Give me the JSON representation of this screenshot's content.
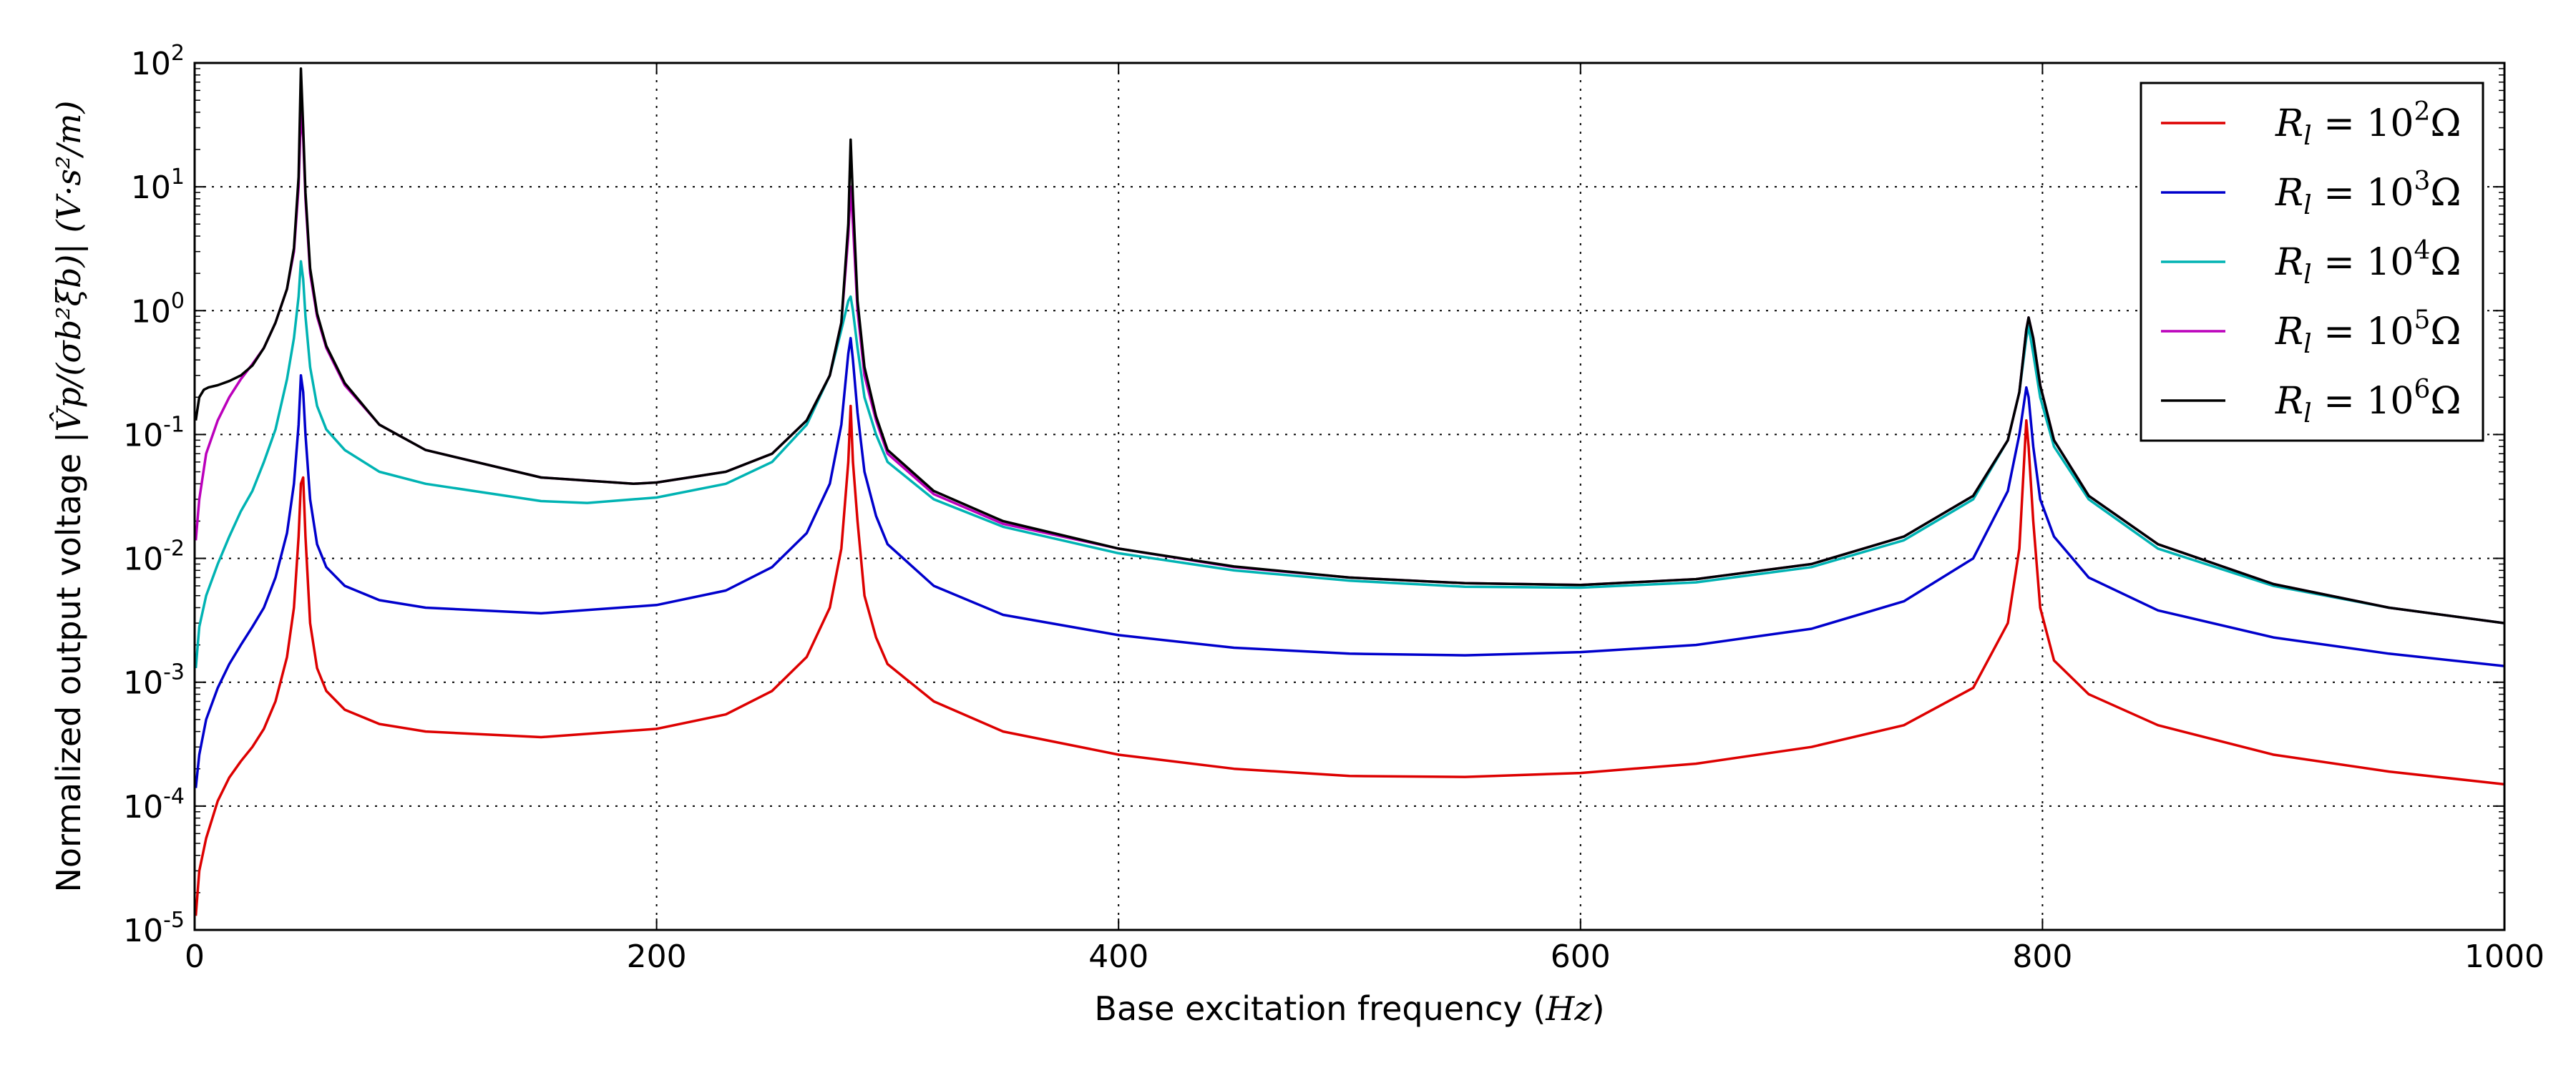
{
  "chart_data": {
    "type": "line",
    "title": "",
    "xlabel": "Base excitation frequency (Hz)",
    "xlabel_prefix": "Base excitation frequency (",
    "xlabel_unit": "Hz",
    "xlabel_suffix": ")",
    "ylabel": "Normalized output voltage |V̂p/(σb²ξb)| (V·s²/m)",
    "ylabel_plain": "Normalized output voltage ",
    "ylabel_math": "|V̂p/(σb²ξb)|  (V·s²/m)",
    "xlim": [
      0,
      1000
    ],
    "ylim": [
      1e-05,
      100
    ],
    "yscale": "log",
    "grid": true,
    "legend_position": "top-right",
    "x_ticks": [
      "0",
      "200",
      "400",
      "600",
      "800",
      "1000"
    ],
    "y_ticks": [
      {
        "base": "10",
        "exp": "-5"
      },
      {
        "base": "10",
        "exp": "-4"
      },
      {
        "base": "10",
        "exp": "-3"
      },
      {
        "base": "10",
        "exp": "-2"
      },
      {
        "base": "10",
        "exp": "-1"
      },
      {
        "base": "10",
        "exp": "0"
      },
      {
        "base": "10",
        "exp": "1"
      },
      {
        "base": "10",
        "exp": "2"
      }
    ],
    "series": [
      {
        "name": "Rl = 10²Ω",
        "label_main": "R",
        "label_sub": "l",
        "label_eq": " = 10",
        "label_exp": "2",
        "label_unit": "Ω",
        "color": "#dd0000",
        "points": [
          [
            0.5,
            1.3e-05
          ],
          [
            2,
            3e-05
          ],
          [
            5,
            5.5e-05
          ],
          [
            10,
            0.00011
          ],
          [
            15,
            0.00017
          ],
          [
            20,
            0.00023
          ],
          [
            25,
            0.0003
          ],
          [
            30,
            0.00042
          ],
          [
            35,
            0.0007
          ],
          [
            40,
            0.0016
          ],
          [
            43,
            0.004
          ],
          [
            45,
            0.015
          ],
          [
            46,
            0.04
          ],
          [
            47,
            0.045
          ],
          [
            48,
            0.015
          ],
          [
            50,
            0.003
          ],
          [
            53,
            0.0013
          ],
          [
            57,
            0.00085
          ],
          [
            65,
            0.0006
          ],
          [
            80,
            0.00046
          ],
          [
            100,
            0.0004
          ],
          [
            150,
            0.00036
          ],
          [
            200,
            0.00042
          ],
          [
            230,
            0.00055
          ],
          [
            250,
            0.00085
          ],
          [
            265,
            0.0016
          ],
          [
            275,
            0.004
          ],
          [
            280,
            0.012
          ],
          [
            283,
            0.06
          ],
          [
            284,
            0.17
          ],
          [
            285,
            0.06
          ],
          [
            287,
            0.02
          ],
          [
            290,
            0.005
          ],
          [
            295,
            0.0023
          ],
          [
            300,
            0.0014
          ],
          [
            320,
            0.0007
          ],
          [
            350,
            0.0004
          ],
          [
            400,
            0.00026
          ],
          [
            450,
            0.0002
          ],
          [
            500,
            0.000175
          ],
          [
            550,
            0.000172
          ],
          [
            600,
            0.000185
          ],
          [
            650,
            0.00022
          ],
          [
            700,
            0.0003
          ],
          [
            740,
            0.00045
          ],
          [
            770,
            0.0009
          ],
          [
            785,
            0.003
          ],
          [
            790,
            0.012
          ],
          [
            793,
            0.13
          ],
          [
            794,
            0.08
          ],
          [
            796,
            0.02
          ],
          [
            799,
            0.004
          ],
          [
            805,
            0.0015
          ],
          [
            820,
            0.0008
          ],
          [
            850,
            0.00045
          ],
          [
            900,
            0.00026
          ],
          [
            950,
            0.00019
          ],
          [
            1000,
            0.00015
          ]
        ]
      },
      {
        "name": "Rl = 10³Ω",
        "label_main": "R",
        "label_sub": "l",
        "label_eq": " = 10",
        "label_exp": "3",
        "label_unit": "Ω",
        "color": "#0000cc",
        "points": [
          [
            0.5,
            0.00014
          ],
          [
            2,
            0.00026
          ],
          [
            5,
            0.0005
          ],
          [
            10,
            0.0009
          ],
          [
            15,
            0.0014
          ],
          [
            20,
            0.002
          ],
          [
            25,
            0.0028
          ],
          [
            30,
            0.004
          ],
          [
            35,
            0.007
          ],
          [
            40,
            0.016
          ],
          [
            43,
            0.04
          ],
          [
            45,
            0.12
          ],
          [
            46,
            0.3
          ],
          [
            47,
            0.22
          ],
          [
            48,
            0.1
          ],
          [
            50,
            0.03
          ],
          [
            53,
            0.013
          ],
          [
            57,
            0.0085
          ],
          [
            65,
            0.006
          ],
          [
            80,
            0.0046
          ],
          [
            100,
            0.004
          ],
          [
            150,
            0.0036
          ],
          [
            200,
            0.0042
          ],
          [
            230,
            0.0055
          ],
          [
            250,
            0.0085
          ],
          [
            265,
            0.016
          ],
          [
            275,
            0.04
          ],
          [
            280,
            0.12
          ],
          [
            283,
            0.45
          ],
          [
            284,
            0.6
          ],
          [
            285,
            0.4
          ],
          [
            287,
            0.15
          ],
          [
            290,
            0.05
          ],
          [
            295,
            0.022
          ],
          [
            300,
            0.013
          ],
          [
            320,
            0.006
          ],
          [
            350,
            0.0035
          ],
          [
            400,
            0.0024
          ],
          [
            450,
            0.0019
          ],
          [
            500,
            0.0017
          ],
          [
            550,
            0.00165
          ],
          [
            600,
            0.00175
          ],
          [
            650,
            0.002
          ],
          [
            700,
            0.0027
          ],
          [
            740,
            0.0045
          ],
          [
            770,
            0.01
          ],
          [
            785,
            0.035
          ],
          [
            790,
            0.1
          ],
          [
            793,
            0.24
          ],
          [
            794,
            0.2
          ],
          [
            796,
            0.08
          ],
          [
            799,
            0.03
          ],
          [
            805,
            0.015
          ],
          [
            820,
            0.007
          ],
          [
            850,
            0.0038
          ],
          [
            900,
            0.0023
          ],
          [
            950,
            0.0017
          ],
          [
            1000,
            0.00135
          ]
        ]
      },
      {
        "name": "Rl = 10⁴Ω",
        "label_main": "R",
        "label_sub": "l",
        "label_eq": " = 10",
        "label_exp": "4",
        "label_unit": "Ω",
        "color": "#00b3b3",
        "points": [
          [
            0.5,
            0.0013
          ],
          [
            2,
            0.0028
          ],
          [
            5,
            0.005
          ],
          [
            10,
            0.009
          ],
          [
            15,
            0.015
          ],
          [
            20,
            0.024
          ],
          [
            25,
            0.035
          ],
          [
            30,
            0.06
          ],
          [
            35,
            0.11
          ],
          [
            40,
            0.28
          ],
          [
            43,
            0.6
          ],
          [
            45,
            1.3
          ],
          [
            46,
            2.5
          ],
          [
            47,
            1.8
          ],
          [
            48,
            0.9
          ],
          [
            50,
            0.35
          ],
          [
            53,
            0.17
          ],
          [
            57,
            0.11
          ],
          [
            65,
            0.075
          ],
          [
            80,
            0.05
          ],
          [
            100,
            0.04
          ],
          [
            150,
            0.029
          ],
          [
            170,
            0.028
          ],
          [
            200,
            0.031
          ],
          [
            230,
            0.04
          ],
          [
            250,
            0.06
          ],
          [
            265,
            0.12
          ],
          [
            275,
            0.3
          ],
          [
            280,
            0.7
          ],
          [
            283,
            1.2
          ],
          [
            284,
            1.3
          ],
          [
            285,
            1.0
          ],
          [
            287,
            0.5
          ],
          [
            290,
            0.2
          ],
          [
            295,
            0.1
          ],
          [
            300,
            0.06
          ],
          [
            320,
            0.03
          ],
          [
            350,
            0.018
          ],
          [
            400,
            0.011
          ],
          [
            450,
            0.008
          ],
          [
            500,
            0.0066
          ],
          [
            550,
            0.0059
          ],
          [
            600,
            0.0058
          ],
          [
            650,
            0.0064
          ],
          [
            700,
            0.0085
          ],
          [
            740,
            0.014
          ],
          [
            770,
            0.03
          ],
          [
            785,
            0.09
          ],
          [
            790,
            0.22
          ],
          [
            793,
            0.6
          ],
          [
            794,
            0.75
          ],
          [
            796,
            0.45
          ],
          [
            799,
            0.2
          ],
          [
            805,
            0.08
          ],
          [
            820,
            0.03
          ],
          [
            850,
            0.012
          ],
          [
            900,
            0.006
          ],
          [
            950,
            0.004
          ],
          [
            1000,
            0.003
          ]
        ]
      },
      {
        "name": "Rl = 10⁵Ω",
        "label_main": "R",
        "label_sub": "l",
        "label_eq": " = 10",
        "label_exp": "5",
        "label_unit": "Ω",
        "color": "#bb00bb",
        "points": [
          [
            0.5,
            0.014
          ],
          [
            2,
            0.03
          ],
          [
            5,
            0.07
          ],
          [
            10,
            0.13
          ],
          [
            15,
            0.2
          ],
          [
            20,
            0.28
          ],
          [
            25,
            0.37
          ],
          [
            30,
            0.5
          ],
          [
            35,
            0.8
          ],
          [
            40,
            1.5
          ],
          [
            43,
            3
          ],
          [
            45,
            10
          ],
          [
            46,
            40
          ],
          [
            47,
            25
          ],
          [
            48,
            8
          ],
          [
            50,
            2
          ],
          [
            53,
            0.9
          ],
          [
            57,
            0.5
          ],
          [
            65,
            0.25
          ],
          [
            80,
            0.12
          ],
          [
            100,
            0.075
          ],
          [
            150,
            0.045
          ],
          [
            190,
            0.04
          ],
          [
            200,
            0.041
          ],
          [
            230,
            0.05
          ],
          [
            250,
            0.07
          ],
          [
            265,
            0.13
          ],
          [
            275,
            0.3
          ],
          [
            280,
            0.8
          ],
          [
            283,
            4
          ],
          [
            284,
            10
          ],
          [
            285,
            5
          ],
          [
            287,
            1
          ],
          [
            290,
            0.3
          ],
          [
            295,
            0.13
          ],
          [
            300,
            0.07
          ],
          [
            320,
            0.033
          ],
          [
            350,
            0.019
          ],
          [
            400,
            0.012
          ],
          [
            450,
            0.0085
          ],
          [
            500,
            0.007
          ],
          [
            550,
            0.0063
          ],
          [
            600,
            0.0061
          ],
          [
            650,
            0.0068
          ],
          [
            700,
            0.009
          ],
          [
            740,
            0.015
          ],
          [
            770,
            0.032
          ],
          [
            785,
            0.09
          ],
          [
            790,
            0.22
          ],
          [
            793,
            0.7
          ],
          [
            794,
            0.88
          ],
          [
            796,
            0.6
          ],
          [
            799,
            0.25
          ],
          [
            805,
            0.09
          ],
          [
            820,
            0.032
          ],
          [
            850,
            0.013
          ],
          [
            900,
            0.0062
          ],
          [
            950,
            0.004
          ],
          [
            1000,
            0.003
          ]
        ]
      },
      {
        "name": "Rl = 10⁶Ω",
        "label_main": "R",
        "label_sub": "l",
        "label_eq": " = 10",
        "label_exp": "6",
        "label_unit": "Ω",
        "color": "#000000",
        "points": [
          [
            0.5,
            0.13
          ],
          [
            1,
            0.15
          ],
          [
            2,
            0.2
          ],
          [
            4,
            0.23
          ],
          [
            6,
            0.24
          ],
          [
            10,
            0.25
          ],
          [
            15,
            0.27
          ],
          [
            20,
            0.3
          ],
          [
            25,
            0.36
          ],
          [
            30,
            0.5
          ],
          [
            35,
            0.8
          ],
          [
            40,
            1.5
          ],
          [
            43,
            3.2
          ],
          [
            45,
            12
          ],
          [
            46,
            90
          ],
          [
            47,
            30
          ],
          [
            48,
            9
          ],
          [
            50,
            2.2
          ],
          [
            53,
            0.95
          ],
          [
            57,
            0.52
          ],
          [
            65,
            0.26
          ],
          [
            80,
            0.12
          ],
          [
            100,
            0.075
          ],
          [
            150,
            0.045
          ],
          [
            190,
            0.04
          ],
          [
            200,
            0.041
          ],
          [
            230,
            0.05
          ],
          [
            250,
            0.07
          ],
          [
            265,
            0.13
          ],
          [
            275,
            0.3
          ],
          [
            280,
            0.8
          ],
          [
            283,
            5
          ],
          [
            284,
            24
          ],
          [
            285,
            8
          ],
          [
            287,
            1.2
          ],
          [
            290,
            0.35
          ],
          [
            295,
            0.14
          ],
          [
            300,
            0.075
          ],
          [
            320,
            0.035
          ],
          [
            350,
            0.02
          ],
          [
            400,
            0.012
          ],
          [
            450,
            0.0086
          ],
          [
            500,
            0.007
          ],
          [
            550,
            0.0063
          ],
          [
            600,
            0.0061
          ],
          [
            650,
            0.0068
          ],
          [
            700,
            0.009
          ],
          [
            740,
            0.015
          ],
          [
            770,
            0.032
          ],
          [
            785,
            0.09
          ],
          [
            790,
            0.22
          ],
          [
            793,
            0.7
          ],
          [
            794,
            0.88
          ],
          [
            796,
            0.6
          ],
          [
            799,
            0.25
          ],
          [
            805,
            0.09
          ],
          [
            820,
            0.032
          ],
          [
            850,
            0.013
          ],
          [
            900,
            0.0062
          ],
          [
            950,
            0.004
          ],
          [
            1000,
            0.003
          ]
        ]
      }
    ]
  }
}
